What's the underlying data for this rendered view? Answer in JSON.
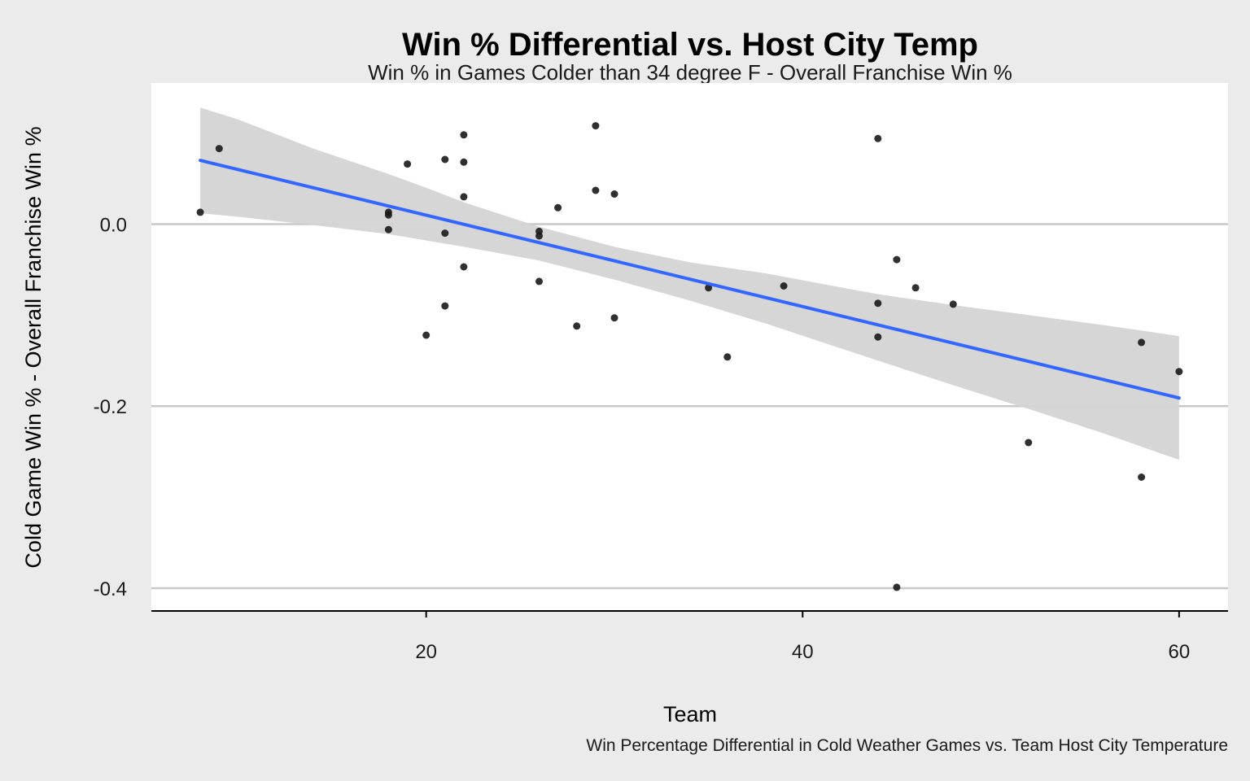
{
  "chart_data": {
    "type": "scatter",
    "title": "Win % Differential vs. Host City Temp",
    "subtitle": "Win % in Games Colder than 34 degree F - Overall Franchise Win %",
    "xlabel": "Team",
    "ylabel": "Cold Game Win % - Overall Franchise Win %",
    "caption": "Win Percentage Differential in Cold Weather Games vs. Team Host City Temperature",
    "xlim": [
      5.4,
      62.6
    ],
    "ylim": [
      -0.425,
      0.155
    ],
    "x_ticks": [
      20,
      40,
      60
    ],
    "x_tick_labels": [
      "20",
      "40",
      "60"
    ],
    "y_ticks": [
      0.0,
      -0.2,
      -0.4
    ],
    "y_tick_labels": [
      "0.0",
      "-0.2",
      "-0.4"
    ],
    "grid": "horizontal major lines only",
    "points": [
      {
        "x": 8,
        "y": 0.013
      },
      {
        "x": 9,
        "y": 0.083
      },
      {
        "x": 18,
        "y": 0.013
      },
      {
        "x": 18,
        "y": 0.01
      },
      {
        "x": 18,
        "y": -0.006
      },
      {
        "x": 19,
        "y": 0.066
      },
      {
        "x": 20,
        "y": -0.122
      },
      {
        "x": 21,
        "y": 0.071
      },
      {
        "x": 21,
        "y": -0.01
      },
      {
        "x": 21,
        "y": -0.09
      },
      {
        "x": 22,
        "y": 0.098
      },
      {
        "x": 22,
        "y": 0.068
      },
      {
        "x": 22,
        "y": 0.03
      },
      {
        "x": 22,
        "y": -0.047
      },
      {
        "x": 26,
        "y": -0.008
      },
      {
        "x": 26,
        "y": -0.013
      },
      {
        "x": 26,
        "y": -0.063
      },
      {
        "x": 27,
        "y": 0.018
      },
      {
        "x": 28,
        "y": -0.112
      },
      {
        "x": 29,
        "y": 0.108
      },
      {
        "x": 29,
        "y": 0.037
      },
      {
        "x": 30,
        "y": 0.033
      },
      {
        "x": 30,
        "y": -0.103
      },
      {
        "x": 35,
        "y": -0.07
      },
      {
        "x": 36,
        "y": -0.146
      },
      {
        "x": 39,
        "y": -0.068
      },
      {
        "x": 44,
        "y": 0.094
      },
      {
        "x": 44,
        "y": -0.087
      },
      {
        "x": 44,
        "y": -0.124
      },
      {
        "x": 45,
        "y": -0.039
      },
      {
        "x": 45,
        "y": -0.399
      },
      {
        "x": 46,
        "y": -0.07
      },
      {
        "x": 48,
        "y": -0.088
      },
      {
        "x": 52,
        "y": -0.24
      },
      {
        "x": 58,
        "y": -0.13
      },
      {
        "x": 58,
        "y": -0.278
      },
      {
        "x": 60,
        "y": -0.162
      }
    ],
    "trend_line": {
      "method": "linear fit",
      "color": "#3366ff",
      "x": [
        8,
        60
      ],
      "y": [
        0.07,
        -0.191
      ],
      "ci_band": {
        "color": "#d4d4d4",
        "x": [
          8,
          10,
          14,
          18,
          20,
          22,
          26,
          30,
          34,
          38,
          44,
          48,
          52,
          56,
          60
        ],
        "upper": [
          0.128,
          0.115,
          0.083,
          0.055,
          0.04,
          0.024,
          -0.003,
          -0.025,
          -0.042,
          -0.054,
          -0.077,
          -0.089,
          -0.1,
          -0.111,
          -0.123
        ],
        "lower": [
          0.012,
          0.008,
          -0.001,
          -0.011,
          -0.018,
          -0.025,
          -0.04,
          -0.061,
          -0.084,
          -0.109,
          -0.15,
          -0.177,
          -0.203,
          -0.23,
          -0.259
        ]
      }
    },
    "colors": {
      "background": "#ebebeb",
      "panel": "#ffffff",
      "grid": "#c8c8c8",
      "points": "#1a1a1a"
    }
  }
}
